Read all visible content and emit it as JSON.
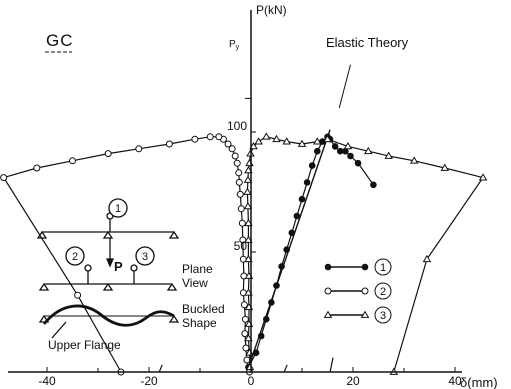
{
  "chart_data": {
    "type": "line",
    "title": "GC",
    "xlabel": "δ(mm)",
    "ylabel": "P(kN)",
    "xlim": [
      -47,
      47
    ],
    "ylim": [
      0,
      122
    ],
    "x_ticks": [
      -40,
      -20,
      0,
      20,
      40
    ],
    "y_ticks": [
      50,
      100
    ],
    "y_tick_labels": [
      "50",
      "100"
    ],
    "py_label": "P",
    "py_label_sub": "y",
    "py_value": 114,
    "grid": false,
    "legend_position": "bottom-right",
    "legend": [
      {
        "marker": "filled-circle",
        "label": "1"
      },
      {
        "marker": "open-circle",
        "label": "2"
      },
      {
        "marker": "open-triangle",
        "label": "3"
      }
    ],
    "series": [
      {
        "name": "1",
        "marker": "filled-circle",
        "points": [
          [
            -0.5,
            2
          ],
          [
            1.0,
            8
          ],
          [
            2.0,
            15
          ],
          [
            3.0,
            22
          ],
          [
            4.0,
            29
          ],
          [
            5.0,
            36
          ],
          [
            6.0,
            44
          ],
          [
            7.0,
            51
          ],
          [
            8.0,
            58
          ],
          [
            9.0,
            65
          ],
          [
            10.0,
            72
          ],
          [
            11.0,
            79
          ],
          [
            12.0,
            86
          ],
          [
            13.0,
            92
          ],
          [
            14.0,
            96
          ],
          [
            15.0,
            98
          ],
          [
            15.5,
            97
          ],
          [
            16.5,
            94
          ],
          [
            17.5,
            92
          ],
          [
            18.5,
            92
          ],
          [
            19.5,
            90
          ],
          [
            21.0,
            87
          ],
          [
            24.0,
            78
          ]
        ]
      },
      {
        "name": "2",
        "marker": "open-circle",
        "points": [
          [
            -0.3,
            0
          ],
          [
            -0.8,
            5
          ],
          [
            -1.0,
            10
          ],
          [
            -1.2,
            16
          ],
          [
            -1.1,
            22
          ],
          [
            -1.3,
            28
          ],
          [
            -1.5,
            33
          ],
          [
            -1.4,
            40
          ],
          [
            -1.5,
            47
          ],
          [
            -1.6,
            55
          ],
          [
            -1.7,
            62
          ],
          [
            -1.9,
            68
          ],
          [
            -2.1,
            74
          ],
          [
            -2.3,
            79
          ],
          [
            -2.4,
            83
          ],
          [
            -2.7,
            87
          ],
          [
            -3.1,
            90
          ],
          [
            -3.7,
            93
          ],
          [
            -4.5,
            95
          ],
          [
            -5.4,
            97
          ],
          [
            -6.3,
            98
          ],
          [
            -8.0,
            98
          ],
          [
            -11.0,
            97
          ],
          [
            -16.0,
            95
          ],
          [
            -22.0,
            93
          ],
          [
            -28.0,
            91
          ],
          [
            -35.0,
            88
          ],
          [
            -42.0,
            85
          ],
          [
            -48.5,
            81
          ],
          [
            -34.0,
            32
          ],
          [
            -25.5,
            0
          ]
        ]
      },
      {
        "name": "3",
        "marker": "open-triangle",
        "points": [
          [
            -0.2,
            2
          ],
          [
            -0.3,
            8
          ],
          [
            -0.5,
            14
          ],
          [
            -0.4,
            20
          ],
          [
            -0.4,
            27
          ],
          [
            -0.5,
            33
          ],
          [
            -0.4,
            40
          ],
          [
            -0.5,
            47
          ],
          [
            -0.5,
            55
          ],
          [
            -0.5,
            62
          ],
          [
            -0.6,
            69
          ],
          [
            -0.7,
            75
          ],
          [
            -0.6,
            80
          ],
          [
            -0.5,
            84
          ],
          [
            -0.3,
            87
          ],
          [
            -0.1,
            91
          ],
          [
            0.5,
            94
          ],
          [
            1.5,
            96
          ],
          [
            3.0,
            98
          ],
          [
            5.0,
            97
          ],
          [
            7.0,
            96
          ],
          [
            10.0,
            95
          ],
          [
            13.0,
            96
          ],
          [
            15.0,
            97
          ],
          [
            19.0,
            94
          ],
          [
            23.0,
            92
          ],
          [
            27.0,
            90
          ],
          [
            32.0,
            88
          ],
          [
            38.0,
            85
          ],
          [
            45.5,
            81
          ],
          [
            34.5,
            47
          ],
          [
            28.0,
            0
          ]
        ]
      }
    ],
    "annotations": {
      "elastic_theory": "Elastic Theory",
      "plane_view_1": "Plane",
      "plane_view_2": "View",
      "buckled_1": "Buckled",
      "buckled_2": "Shape",
      "upper_flange": "Upper Flange",
      "load": "P",
      "gauge_1": "1",
      "gauge_2": "2",
      "gauge_3": "3"
    }
  }
}
